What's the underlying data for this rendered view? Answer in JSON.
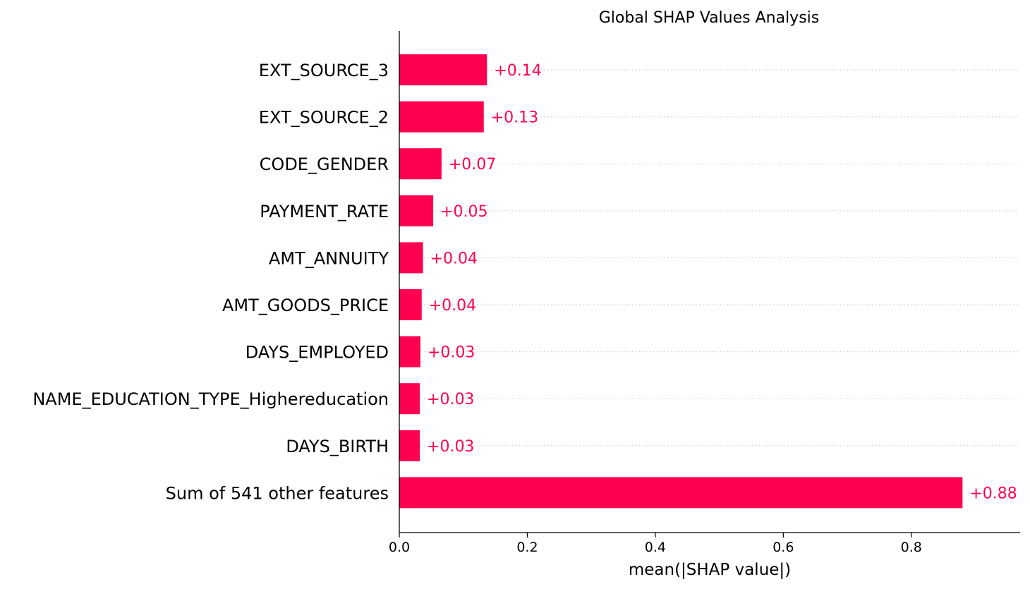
{
  "chart_data": {
    "type": "bar",
    "orientation": "horizontal",
    "title": "Global SHAP Values Analysis",
    "xlabel": "mean(|SHAP value|)",
    "ylabel": "",
    "xlim": [
      0,
      0.97
    ],
    "xticks": [
      0.0,
      0.2,
      0.4,
      0.6,
      0.8
    ],
    "xtick_labels": [
      "0.0",
      "0.2",
      "0.4",
      "0.6",
      "0.8"
    ],
    "grid": false,
    "bar_color": "#ff0051",
    "value_label_color": "#ff0051",
    "categories": [
      "EXT_SOURCE_3",
      "EXT_SOURCE_2",
      "CODE_GENDER",
      "PAYMENT_RATE",
      "AMT_ANNUITY",
      "AMT_GOODS_PRICE",
      "DAYS_EMPLOYED",
      "NAME_EDUCATION_TYPE_Highereducation",
      "DAYS_BIRTH",
      "Sum of 541 other features"
    ],
    "values": [
      0.137,
      0.132,
      0.066,
      0.053,
      0.037,
      0.035,
      0.033,
      0.032,
      0.032,
      0.88
    ],
    "value_labels": [
      "+0.14",
      "+0.13",
      "+0.07",
      "+0.05",
      "+0.04",
      "+0.04",
      "+0.03",
      "+0.03",
      "+0.03",
      "+0.88"
    ]
  }
}
